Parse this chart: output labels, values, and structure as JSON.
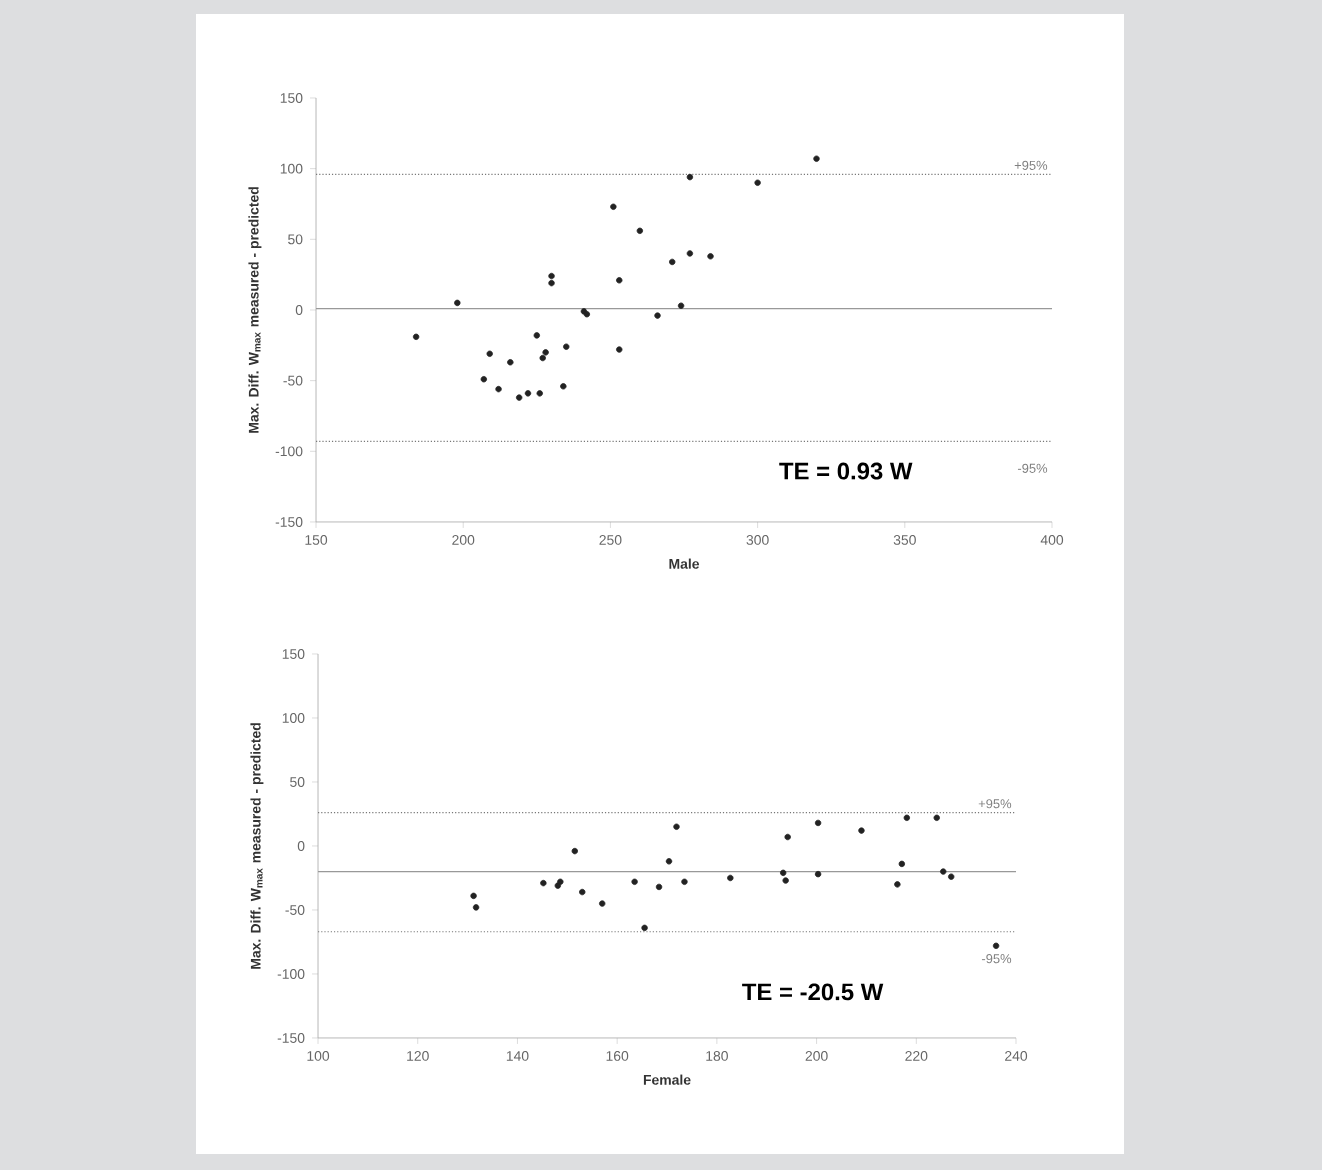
{
  "chart_data": [
    {
      "type": "scatter",
      "xlabel": "Male",
      "ylabel": "Max. Diff. W$_{max}$ measured - predicted",
      "marker": "circle",
      "grid": false,
      "xlim": [
        150,
        400
      ],
      "xticks": [
        150,
        200,
        250,
        300,
        350,
        400
      ],
      "ylim": [
        -150,
        150
      ],
      "yticks": [
        -150,
        -100,
        -50,
        0,
        50,
        100,
        150
      ],
      "x": [
        184,
        198,
        209,
        207,
        212,
        216,
        219,
        222,
        226,
        225,
        228,
        227,
        230,
        230,
        234,
        235,
        241,
        242,
        251,
        253,
        253,
        260,
        266,
        271,
        274,
        277,
        277,
        284,
        300,
        320
      ],
      "series": [
        {
          "color": "#222222",
          "values": [
            -19,
            5,
            -31,
            -49,
            -56,
            -37,
            -62,
            -59,
            -59,
            -18,
            -30,
            -34,
            24,
            19,
            -54,
            -26,
            -1,
            -3,
            73,
            -28,
            21,
            56,
            -4,
            34,
            3,
            94,
            40,
            38,
            90,
            107
          ]
        }
      ],
      "ref_lines": [
        {
          "axis": "y",
          "value": 96,
          "color": "#777777",
          "line_style": "dotted"
        },
        {
          "axis": "y",
          "value": 1,
          "color": "#999999",
          "line_style": "solid"
        },
        {
          "axis": "y",
          "value": -93,
          "color": "#777777",
          "line_style": "dotted"
        }
      ],
      "annotations": [
        "TE = 0.93 W",
        {
          "text": "+95%",
          "y": 96
        },
        {
          "text": "-95%",
          "y": -93
        }
      ]
    },
    {
      "type": "scatter",
      "xlabel": "Female",
      "ylabel": "Max. Diff. W$_{max}$ measured - predicted",
      "marker": "circle",
      "grid": false,
      "xlim": [
        100,
        240
      ],
      "xticks": [
        100,
        120,
        140,
        160,
        180,
        200,
        220,
        240
      ],
      "ylim": [
        -150,
        150
      ],
      "yticks": [
        -150,
        -100,
        -50,
        0,
        50,
        100,
        150
      ],
      "x": [
        131.2,
        131.7,
        145.2,
        148.1,
        148.6,
        151.5,
        153.0,
        157.0,
        163.5,
        165.5,
        168.4,
        170.4,
        171.9,
        173.5,
        182.7,
        193.3,
        193.8,
        194.2,
        200.3,
        200.3,
        209.0,
        216.2,
        217.1,
        218.1,
        224.1,
        225.4,
        227.0,
        236.0
      ],
      "series": [
        {
          "color": "#222222",
          "values": [
            -39,
            -48,
            -29,
            -31,
            -28,
            -4,
            -36,
            -45,
            -28,
            -64,
            -32,
            -12,
            15,
            -28,
            -25,
            -21,
            -27,
            7,
            18,
            -22,
            12,
            -30,
            -14,
            22,
            22,
            -20,
            -24,
            -78
          ]
        }
      ],
      "ref_lines": [
        {
          "axis": "y",
          "value": 26,
          "color": "#777777",
          "line_style": "dotted"
        },
        {
          "axis": "y",
          "value": -20,
          "color": "#999999",
          "line_style": "solid"
        },
        {
          "axis": "y",
          "value": -67,
          "color": "#777777",
          "line_style": "dotted"
        }
      ],
      "annotations": [
        "TE = -20.5 W",
        {
          "text": "+95%",
          "y": 26
        },
        {
          "text": "-95%",
          "y": -67
        }
      ]
    }
  ]
}
